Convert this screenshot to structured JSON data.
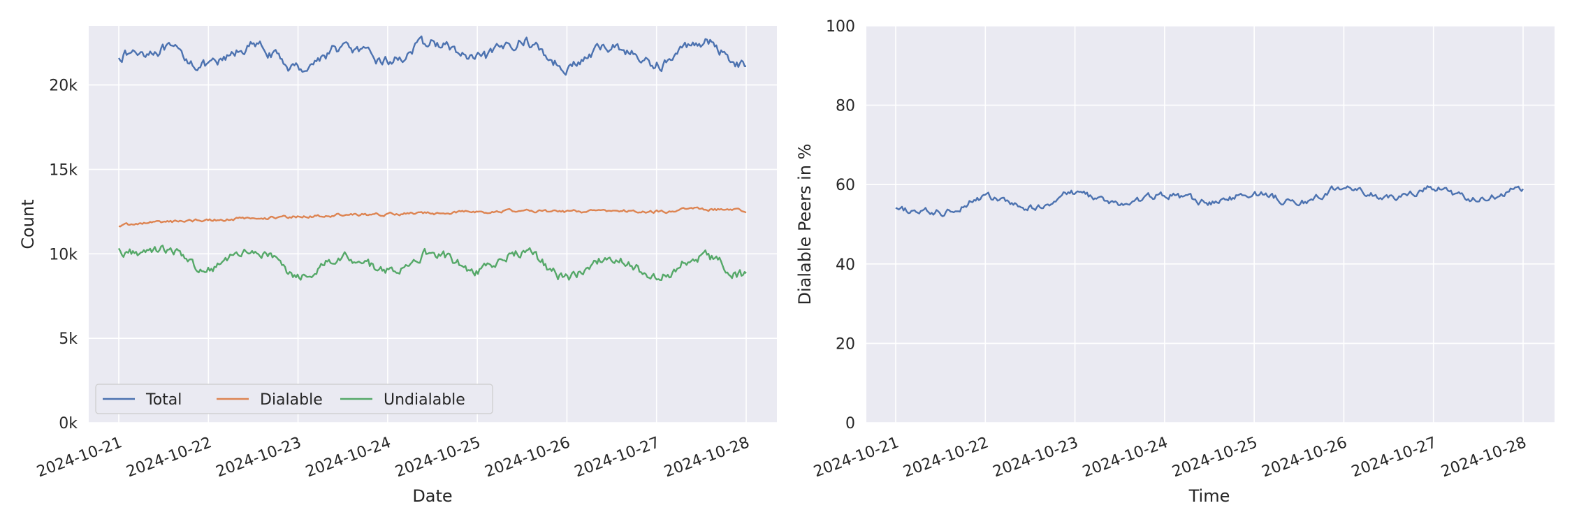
{
  "chart_data": [
    {
      "type": "line",
      "xlabel": "Date",
      "ylabel": "Count",
      "x_tick_labels": [
        "2024-10-21",
        "2024-10-22",
        "2024-10-23",
        "2024-10-24",
        "2024-10-25",
        "2024-10-26",
        "2024-10-27",
        "2024-10-28"
      ],
      "y_tick_labels": [
        "0k",
        "5k",
        "10k",
        "15k",
        "20k"
      ],
      "ylim": [
        0,
        23500
      ],
      "grid": true,
      "legend_position": "lower-left",
      "x_dates": [
        "2024-10-21",
        "2024-10-21 12:00",
        "2024-10-22",
        "2024-10-22 12:00",
        "2024-10-23",
        "2024-10-23 12:00",
        "2024-10-24",
        "2024-10-24 12:00",
        "2024-10-25",
        "2024-10-25 12:00",
        "2024-10-26",
        "2024-10-26 12:00",
        "2024-10-27",
        "2024-10-27 12:00",
        "2024-10-28"
      ],
      "series": [
        {
          "name": "Total",
          "color": "#4c72b0",
          "values": [
            21800,
            22100,
            21100,
            22300,
            21000,
            22200,
            21400,
            22500,
            21500,
            22600,
            21100,
            22300,
            21200,
            22600,
            21200
          ]
        },
        {
          "name": "Dialable",
          "color": "#dd8452",
          "values": [
            11700,
            11900,
            12000,
            12100,
            12200,
            12300,
            12350,
            12400,
            12500,
            12550,
            12500,
            12550,
            12500,
            12650,
            12550
          ]
        },
        {
          "name": "Undialable",
          "color": "#55a868",
          "values": [
            10100,
            10300,
            9100,
            10300,
            8800,
            9800,
            9100,
            10100,
            9000,
            10100,
            8600,
            9800,
            8600,
            9900,
            8700
          ]
        }
      ]
    },
    {
      "type": "line",
      "xlabel": "Time",
      "ylabel": "Dialable Peers in %",
      "x_tick_labels": [
        "2024-10-21",
        "2024-10-22",
        "2024-10-23",
        "2024-10-24",
        "2024-10-25",
        "2024-10-26",
        "2024-10-27",
        "2024-10-28"
      ],
      "y_tick_labels": [
        "0",
        "20",
        "40",
        "60",
        "80",
        "100"
      ],
      "ylim": [
        0,
        100
      ],
      "grid": true,
      "x_dates": [
        "2024-10-21",
        "2024-10-21 12:00",
        "2024-10-22",
        "2024-10-22 12:00",
        "2024-10-23",
        "2024-10-23 12:00",
        "2024-10-24",
        "2024-10-24 12:00",
        "2024-10-25",
        "2024-10-25 12:00",
        "2024-10-26",
        "2024-10-26 12:00",
        "2024-10-27",
        "2024-10-27 12:00",
        "2024-10-28"
      ],
      "series": [
        {
          "color": "#4c72b0",
          "values": [
            53.5,
            53.0,
            56.8,
            54.0,
            58.0,
            55.0,
            57.5,
            55.5,
            57.8,
            55.5,
            59.2,
            56.5,
            59.0,
            56.0,
            59.0
          ]
        }
      ]
    }
  ]
}
